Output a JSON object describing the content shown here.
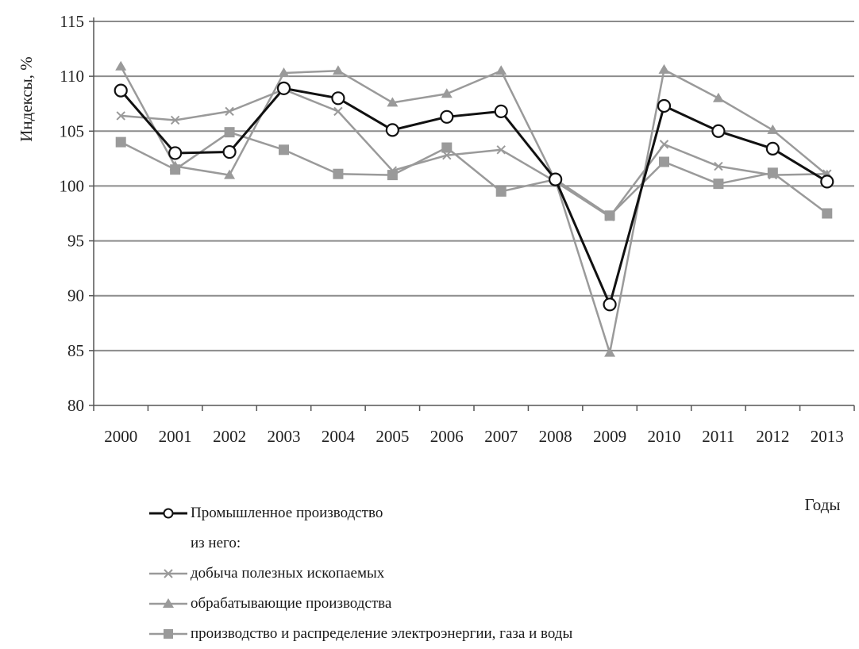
{
  "chart_data": {
    "type": "line",
    "title": "",
    "xlabel": "Годы",
    "ylabel": "Индексы, %",
    "ylim": [
      80,
      115
    ],
    "yticks": [
      80,
      85,
      90,
      95,
      100,
      105,
      110,
      115
    ],
    "grid": true,
    "legend_position": "bottom-left",
    "categories": [
      "2000",
      "2001",
      "2002",
      "2003",
      "2004",
      "2005",
      "2006",
      "2007",
      "2008",
      "2009",
      "2010",
      "2011",
      "2012",
      "2013"
    ],
    "legend_subheading": "из него:",
    "series": [
      {
        "name": "Промышленное производство",
        "marker": "circle",
        "color": "#111111",
        "values": [
          108.7,
          103.0,
          103.1,
          108.9,
          108.0,
          105.1,
          106.3,
          106.8,
          100.6,
          89.2,
          107.3,
          105.0,
          103.4,
          100.4
        ]
      },
      {
        "name": "добыча полезных ископаемых",
        "marker": "cross",
        "color": "#9a9a9a",
        "values": [
          106.4,
          106.0,
          106.8,
          108.8,
          106.8,
          101.4,
          102.8,
          103.3,
          100.4,
          97.2,
          103.8,
          101.8,
          101.0,
          101.1
        ]
      },
      {
        "name": "обрабатывающие производства",
        "marker": "triangle",
        "color": "#9a9a9a",
        "values": [
          110.9,
          101.8,
          101.0,
          110.3,
          110.5,
          107.6,
          108.4,
          110.5,
          100.5,
          84.8,
          110.6,
          108.0,
          105.1,
          101.0
        ]
      },
      {
        "name": "производство и распределение электроэнергии, газа и воды",
        "marker": "square",
        "color": "#9a9a9a",
        "values": [
          104.0,
          101.5,
          104.9,
          103.3,
          101.1,
          101.0,
          103.5,
          99.5,
          100.6,
          97.3,
          102.2,
          100.2,
          101.2,
          97.5
        ]
      }
    ]
  }
}
